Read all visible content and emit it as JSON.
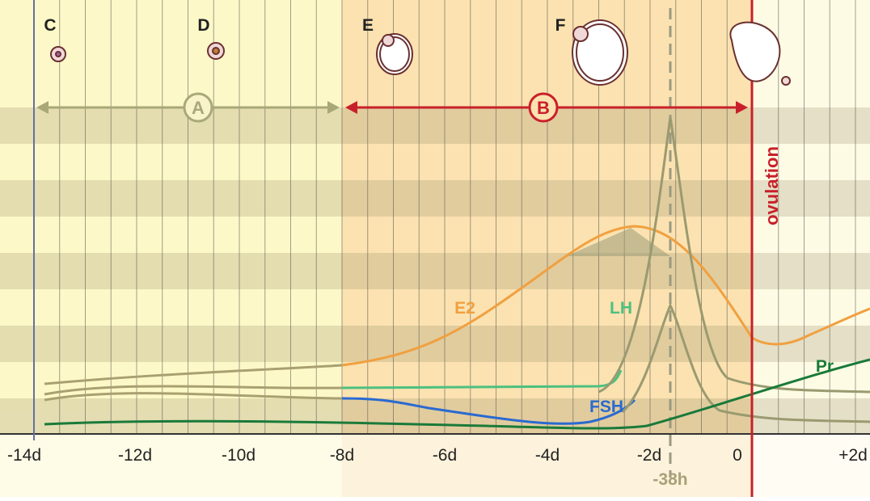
{
  "stages": [
    "C",
    "D",
    "E",
    "F"
  ],
  "phases": [
    "A",
    "B"
  ],
  "event": "ovulation",
  "curves": [
    "E2",
    "LH",
    "FSH",
    "Pr"
  ],
  "axis": {
    "ticks": [
      "-14d",
      "-12d",
      "-10d",
      "-8d",
      "-6d",
      "-4d",
      "-2d",
      "0",
      "+2d"
    ],
    "marker": "-38h"
  }
}
